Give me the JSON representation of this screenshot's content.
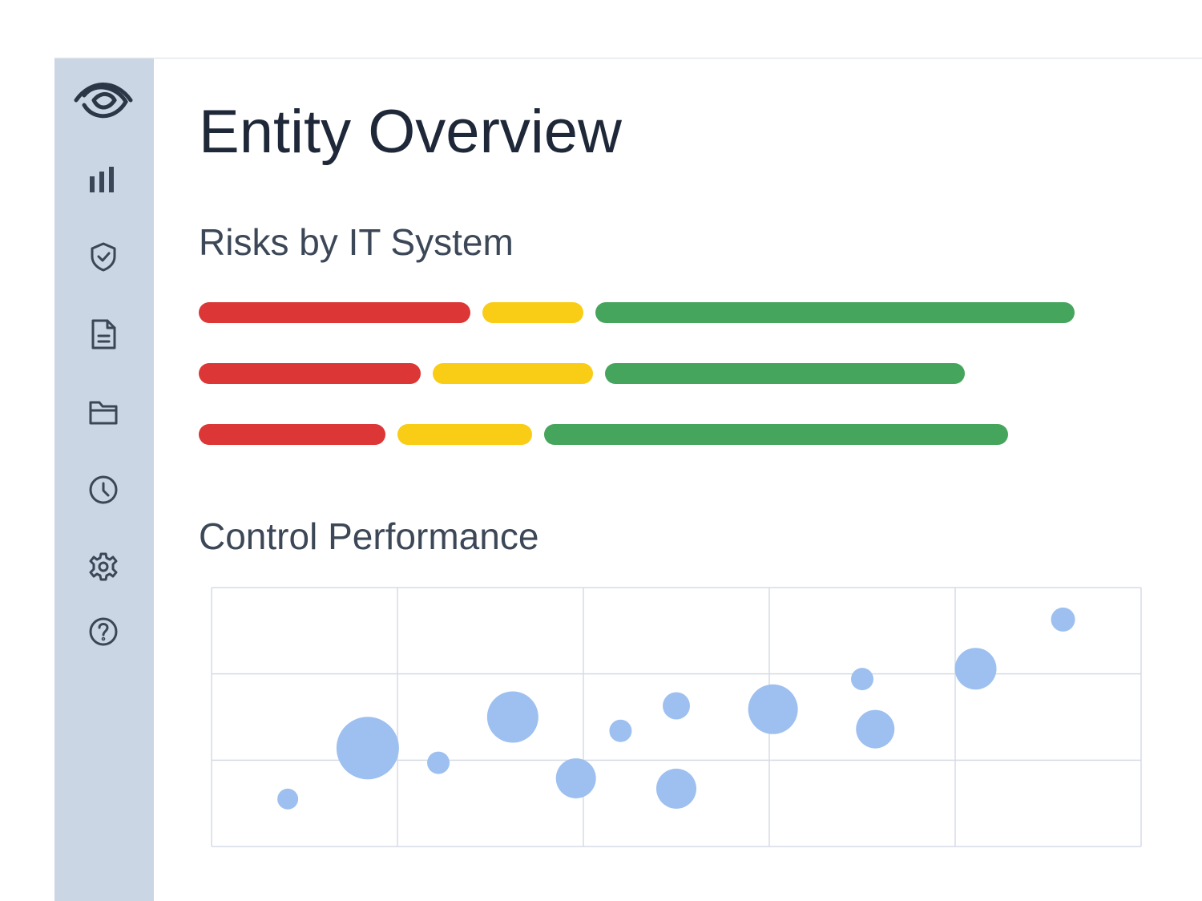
{
  "title": "Entity Overview",
  "chart_data": [
    {
      "type": "bar",
      "orientation": "horizontal",
      "stacked": true,
      "title": "Risks by IT System",
      "series": [
        {
          "color": "#dc3636",
          "values": [
            339,
            277,
            233
          ]
        },
        {
          "color": "#f9cc16",
          "values": [
            126,
            200,
            168
          ]
        },
        {
          "color": "#46a55c",
          "values": [
            598,
            449,
            579
          ]
        }
      ]
    },
    {
      "type": "scatter",
      "title": "Control Performance",
      "color": "#9dc0f0",
      "x": [
        0.41,
        0.84,
        1.22,
        1.62,
        1.96,
        2.2,
        2.5,
        2.5,
        3.02,
        3.5,
        3.57,
        4.11,
        4.58
      ],
      "y": [
        0.55,
        1.14,
        0.97,
        1.5,
        0.79,
        1.34,
        0.67,
        1.63,
        1.59,
        1.94,
        1.36,
        2.06,
        2.63
      ],
      "sizes": [
        13,
        39,
        14,
        32,
        25,
        14,
        25,
        17,
        31,
        14,
        24,
        26,
        15
      ],
      "xlim": [
        0,
        5
      ],
      "xticks": [
        0,
        1,
        2,
        3,
        4,
        5
      ],
      "ylim": [
        0,
        3
      ],
      "yticks": [
        0,
        1,
        2,
        3
      ],
      "grid": true
    }
  ]
}
